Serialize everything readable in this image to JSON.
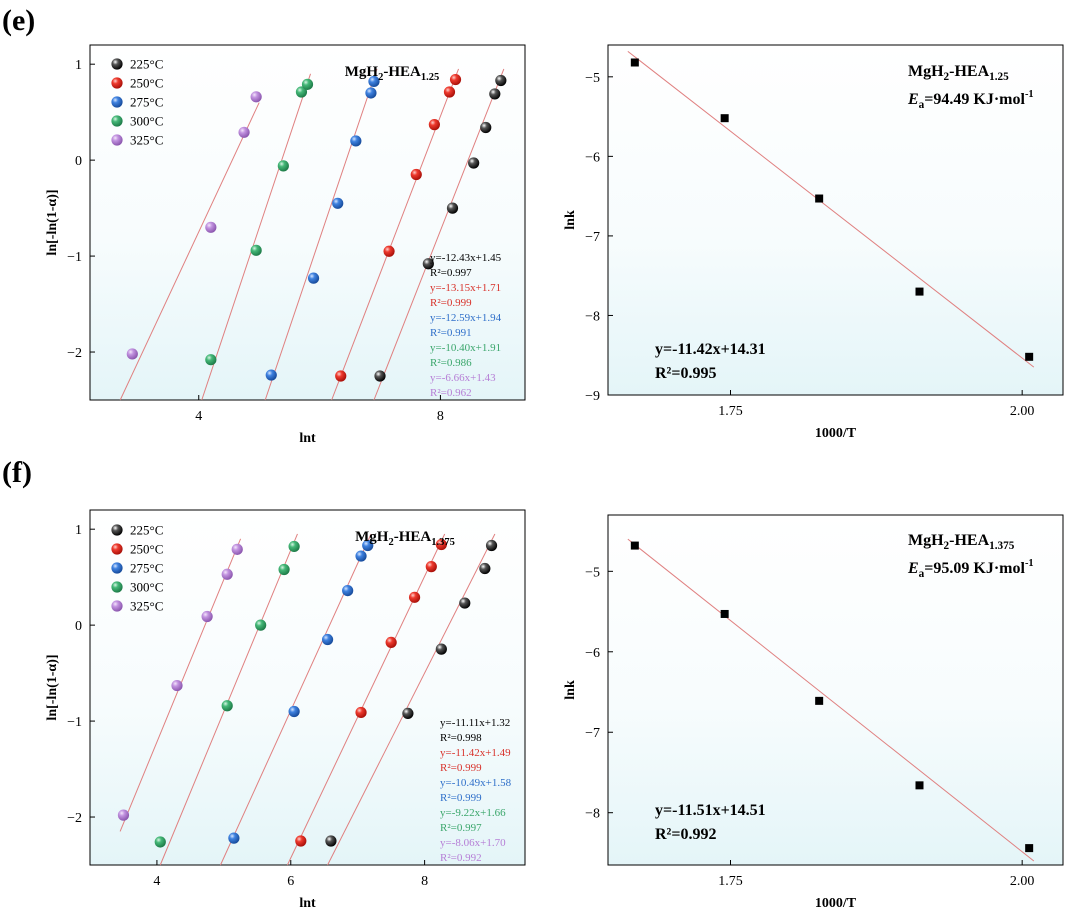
{
  "panels": {
    "e": {
      "label": "(e)"
    },
    "f": {
      "label": "(f)"
    }
  },
  "legend_labels": [
    "225°C",
    "250°C",
    "275°C",
    "300°C",
    "325°C"
  ],
  "colors": {
    "series": [
      "#1a1a1a",
      "#e0241b",
      "#2f6fc9",
      "#3aa66b",
      "#b67fd6"
    ],
    "fit_line": "#e08080",
    "eq_text": [
      "#000000",
      "#d8322b",
      "#2f6fc9",
      "#3aa66b",
      "#b67fd6"
    ]
  },
  "chart_data": [
    {
      "id": "e-left",
      "type": "scatter",
      "title": "MgH2-HEA1.25",
      "title_parts": {
        "main": "MgH",
        "sub1": "2",
        "mid": "-HEA",
        "sub2": "1.25"
      },
      "xlabel": "lnt",
      "ylabel": "ln[-ln(1-α)]",
      "xlim": [
        2.2,
        9.4
      ],
      "ylim": [
        -2.5,
        1.2
      ],
      "xticks": [
        "4",
        "8"
      ],
      "xtick_values": [
        4,
        8
      ],
      "yticks": [
        "1",
        "0",
        "−1",
        "−2"
      ],
      "ytick_values": [
        1,
        0,
        -1,
        -2
      ],
      "series": [
        {
          "name": "225°C",
          "x": [
            7.0,
            7.8,
            8.2,
            8.55,
            8.75,
            8.9,
            9.0
          ],
          "y": [
            -2.25,
            -1.08,
            -0.5,
            -0.03,
            0.34,
            0.69,
            0.83
          ],
          "equation": "y=-12.43x+1.45",
          "r2": "R²=0.997",
          "fit": [
            [
              6.9,
              -2.5
            ],
            [
              9.05,
              0.95
            ]
          ]
        },
        {
          "name": "250°C",
          "x": [
            6.35,
            7.15,
            7.6,
            7.9,
            8.15,
            8.25
          ],
          "y": [
            -2.25,
            -0.95,
            -0.15,
            0.37,
            0.71,
            0.84
          ],
          "equation": "y=-13.15x+1.71",
          "r2": "R²=0.999",
          "fit": [
            [
              6.2,
              -2.5
            ],
            [
              8.3,
              0.95
            ]
          ]
        },
        {
          "name": "275°C",
          "x": [
            5.2,
            5.9,
            6.3,
            6.6,
            6.85,
            6.9
          ],
          "y": [
            -2.24,
            -1.23,
            -0.45,
            0.2,
            0.7,
            0.82
          ],
          "equation": "y=-12.59x+1.94",
          "r2": "R²=0.991",
          "fit": [
            [
              5.1,
              -2.5
            ],
            [
              6.95,
              0.95
            ]
          ]
        },
        {
          "name": "300°C",
          "x": [
            4.2,
            4.95,
            5.4,
            5.7,
            5.8
          ],
          "y": [
            -2.08,
            -0.94,
            -0.06,
            0.71,
            0.79
          ],
          "equation": "y=-10.40x+1.91",
          "r2": "R²=0.986",
          "fit": [
            [
              4.05,
              -2.5
            ],
            [
              5.85,
              0.9
            ]
          ]
        },
        {
          "name": "325°C",
          "x": [
            2.9,
            4.2,
            4.75,
            4.95
          ],
          "y": [
            -2.02,
            -0.7,
            0.29,
            0.66
          ],
          "equation": "y=-6.66x+1.43",
          "r2": "R²=0.962",
          "fit": [
            [
              2.7,
              -2.5
            ],
            [
              5.0,
              0.6
            ]
          ]
        }
      ]
    },
    {
      "id": "e-right",
      "type": "scatter",
      "title": "MgH2-HEA1.25",
      "title_parts": {
        "main": "MgH",
        "sub1": "2",
        "mid": "-HEA",
        "sub2": "1.25"
      },
      "ea_parts": {
        "sym": "E",
        "sub": "a",
        "value": "=94.49 KJ·mol",
        "sup": "-1"
      },
      "xlabel": "1000/T",
      "ylabel": "lnk",
      "xlim": [
        1.645,
        2.035
      ],
      "ylim": [
        -9.0,
        -4.6
      ],
      "xticks": [
        "1.75",
        "2.00"
      ],
      "xtick_values": [
        1.75,
        2.0
      ],
      "yticks": [
        "−5",
        "−6",
        "−7",
        "−8",
        "−9"
      ],
      "ytick_values": [
        -5,
        -6,
        -7,
        -8,
        -9
      ],
      "x": [
        1.668,
        1.745,
        1.826,
        1.912,
        2.006
      ],
      "y": [
        -4.82,
        -5.52,
        -6.53,
        -7.7,
        -8.52
      ],
      "fit": [
        [
          1.662,
          -4.68
        ],
        [
          2.01,
          -8.65
        ]
      ],
      "equation": "y=-11.42x+14.31",
      "r2": "R²=0.995"
    },
    {
      "id": "f-left",
      "type": "scatter",
      "title": "MgH2-HEA1.375",
      "title_parts": {
        "main": "MgH",
        "sub1": "2",
        "mid": "-HEA",
        "sub2": "1.375"
      },
      "xlabel": "lnt",
      "ylabel": "ln[-ln(1-α)]",
      "xlim": [
        3.0,
        9.5
      ],
      "ylim": [
        -2.5,
        1.2
      ],
      "xticks": [
        "4",
        "6",
        "8"
      ],
      "xtick_values": [
        4,
        6,
        8
      ],
      "yticks": [
        "1",
        "0",
        "−1",
        "−2"
      ],
      "ytick_values": [
        1,
        0,
        -1,
        -2
      ],
      "series": [
        {
          "name": "225°C",
          "x": [
            6.6,
            7.75,
            8.25,
            8.6,
            8.9,
            9.0
          ],
          "y": [
            -2.25,
            -0.92,
            -0.25,
            0.23,
            0.59,
            0.83
          ],
          "equation": "y=-11.11x+1.32",
          "r2": "R²=0.998",
          "fit": [
            [
              6.55,
              -2.5
            ],
            [
              9.05,
              0.95
            ]
          ]
        },
        {
          "name": "250°C",
          "x": [
            6.15,
            7.05,
            7.5,
            7.85,
            8.1,
            8.25
          ],
          "y": [
            -2.25,
            -0.91,
            -0.18,
            0.29,
            0.61,
            0.84
          ],
          "equation": "y=-11.42x+1.49",
          "r2": "R²=0.999",
          "fit": [
            [
              5.95,
              -2.5
            ],
            [
              8.3,
              0.95
            ]
          ]
        },
        {
          "name": "275°C",
          "x": [
            5.15,
            6.05,
            6.55,
            6.85,
            7.05,
            7.15
          ],
          "y": [
            -2.22,
            -0.9,
            -0.15,
            0.36,
            0.72,
            0.83
          ],
          "equation": "y=-10.49x+1.58",
          "r2": "R²=0.999",
          "fit": [
            [
              4.95,
              -2.5
            ],
            [
              7.2,
              0.95
            ]
          ]
        },
        {
          "name": "300°C",
          "x": [
            4.05,
            5.05,
            5.55,
            5.9,
            6.05
          ],
          "y": [
            -2.26,
            -0.84,
            0.0,
            0.58,
            0.82
          ],
          "equation": "y=-9.22x+1.66",
          "r2": "R²=0.997",
          "fit": [
            [
              4.05,
              -2.5
            ],
            [
              6.1,
              0.95
            ]
          ]
        },
        {
          "name": "325°C",
          "x": [
            3.5,
            4.3,
            4.75,
            5.05,
            5.2
          ],
          "y": [
            -1.98,
            -0.63,
            0.09,
            0.53,
            0.79
          ],
          "equation": "y=-8.06x+1.70",
          "r2": "R²=0.992",
          "fit": [
            [
              3.45,
              -2.15
            ],
            [
              5.25,
              0.9
            ]
          ]
        }
      ]
    },
    {
      "id": "f-right",
      "type": "scatter",
      "title": "MgH2-HEA1.375",
      "title_parts": {
        "main": "MgH",
        "sub1": "2",
        "mid": "-HEA",
        "sub2": "1.375"
      },
      "ea_parts": {
        "sym": "E",
        "sub": "a",
        "value": "=95.09 KJ·mol",
        "sup": "-1"
      },
      "xlabel": "1000/T",
      "ylabel": "lnk",
      "xlim": [
        1.645,
        2.035
      ],
      "ylim": [
        -8.65,
        -4.3
      ],
      "xticks": [
        "1.75",
        "2.00"
      ],
      "xtick_values": [
        1.75,
        2.0
      ],
      "yticks": [
        "−5",
        "−6",
        "−7",
        "−8"
      ],
      "ytick_values": [
        -5,
        -6,
        -7,
        -8
      ],
      "x": [
        1.668,
        1.745,
        1.826,
        1.912,
        2.006
      ],
      "y": [
        -4.68,
        -5.53,
        -6.61,
        -7.66,
        -8.44
      ],
      "fit": [
        [
          1.662,
          -4.6
        ],
        [
          2.01,
          -8.6
        ]
      ],
      "equation": "y=-11.51x+14.51",
      "r2": "R²=0.992"
    }
  ]
}
